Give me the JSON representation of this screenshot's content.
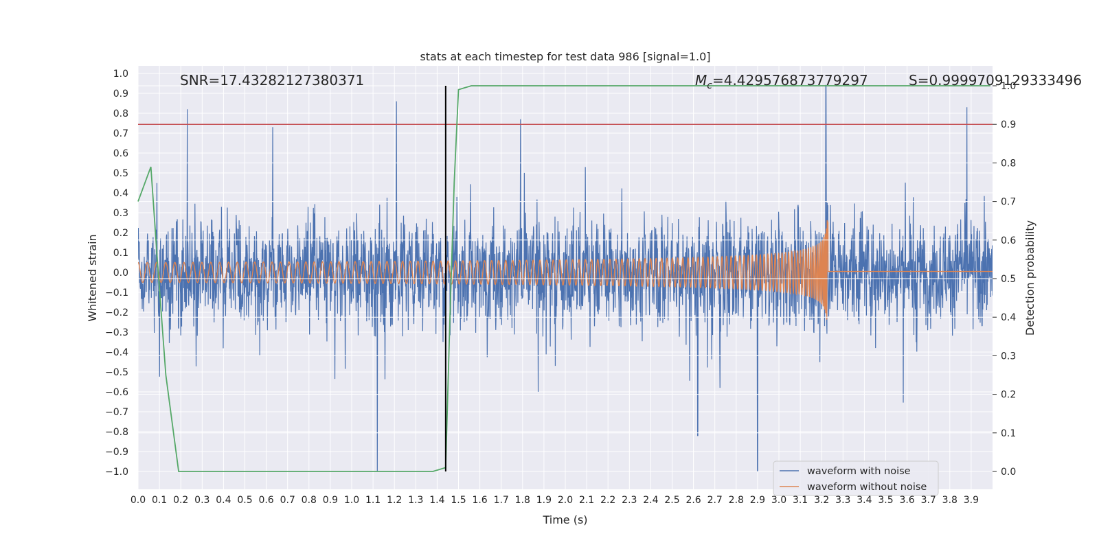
{
  "chart_data": {
    "type": "line",
    "title": "stats at each timestep for test data 986 [signal=1.0]",
    "xlabel": "Time (s)",
    "ylabel_left": "Whitened strain",
    "ylabel_right": "Detection probability",
    "annotations": {
      "snr": "SNR=17.43282127380371",
      "mc_symbol": "M",
      "mc_sub": "c",
      "mc_value": "=4.429576873779297",
      "s": "S=0.9999709129333496"
    },
    "xlim": [
      0.0,
      4.0
    ],
    "xticks": [
      "0.0",
      "0.1",
      "0.2",
      "0.3",
      "0.4",
      "0.5",
      "0.6",
      "0.7",
      "0.8",
      "0.9",
      "1.0",
      "1.1",
      "1.2",
      "1.3",
      "1.4",
      "1.5",
      "1.6",
      "1.7",
      "1.8",
      "1.9",
      "2.0",
      "2.1",
      "2.2",
      "2.3",
      "2.4",
      "2.5",
      "2.6",
      "2.7",
      "2.8",
      "2.9",
      "3.0",
      "3.1",
      "3.2",
      "3.3",
      "3.4",
      "3.5",
      "3.6",
      "3.7",
      "3.8",
      "3.9"
    ],
    "ylim_left": [
      -1.1,
      1.05
    ],
    "yticks_left": [
      "1.0",
      "0.9",
      "0.8",
      "0.7",
      "0.6",
      "0.5",
      "0.4",
      "0.3",
      "0.2",
      "0.1",
      "0.0",
      "−0.1",
      "−0.2",
      "−0.3",
      "−0.4",
      "−0.5",
      "−0.6",
      "−0.7",
      "−0.8",
      "−0.9",
      "−1.0"
    ],
    "ylim_right": [
      -0.05,
      1.05
    ],
    "yticks_right": [
      "1.0",
      "0.9",
      "0.8",
      "0.7",
      "0.6",
      "0.5",
      "0.4",
      "0.3",
      "0.2",
      "0.1",
      "0.0"
    ],
    "threshold": 0.9,
    "detection_time": 1.44,
    "merger_time": 3.23,
    "grid": true,
    "legend_position": "lower right",
    "colors": {
      "background": "#eaeaf2",
      "grid": "#ffffff",
      "noise": "#4c72b0",
      "clean": "#dd8452",
      "probability": "#55a868",
      "threshold": "#c44e52",
      "marker": "#000000"
    },
    "series": [
      {
        "name": "waveform with noise",
        "kind": "noise",
        "amplitude_range": [
          -1.0,
          0.94
        ],
        "peaks": [
          {
            "x": 0.23,
            "y": 0.82
          },
          {
            "x": 0.63,
            "y": 0.73
          },
          {
            "x": 1.12,
            "y": -1.0
          },
          {
            "x": 1.21,
            "y": 0.86
          },
          {
            "x": 1.79,
            "y": 0.77
          },
          {
            "x": 2.62,
            "y": -0.82
          },
          {
            "x": 2.9,
            "y": -1.0
          },
          {
            "x": 3.22,
            "y": 0.94
          },
          {
            "x": 3.88,
            "y": 0.83
          }
        ]
      },
      {
        "name": "waveform without noise",
        "kind": "chirp",
        "start_amplitude": 0.05,
        "peak_amplitude": 0.38,
        "merger_time": 3.23,
        "post_merger_value": 0.005
      },
      {
        "name": "detection probability",
        "axis": "right",
        "x": [
          0.0,
          0.06,
          0.09,
          0.13,
          0.19,
          0.25,
          1.38,
          1.44,
          1.46,
          1.48,
          1.5,
          1.56,
          3.99
        ],
        "y": [
          0.7,
          0.79,
          0.55,
          0.25,
          0.0,
          0.0,
          0.0,
          0.01,
          0.4,
          0.75,
          0.99,
          1.0,
          1.0
        ]
      }
    ]
  }
}
